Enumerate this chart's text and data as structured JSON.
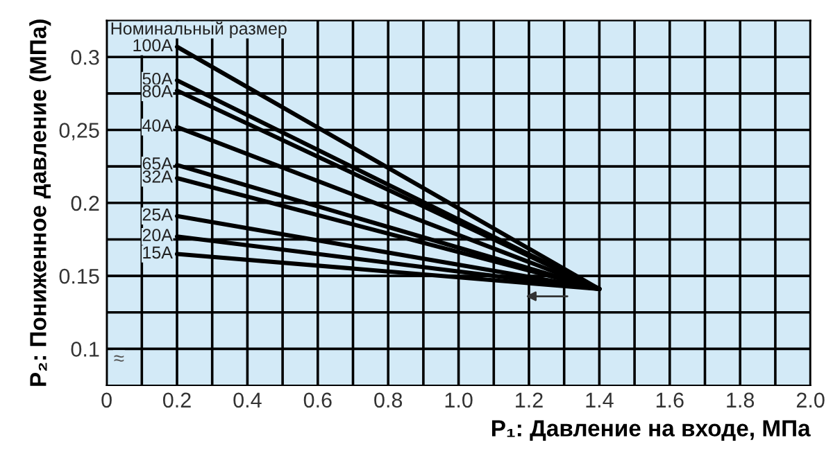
{
  "chart_data": {
    "type": "line",
    "xlabel": "P₁: Давление на входе, МПа",
    "ylabel": "P₂: Пониженное давление (МПа)",
    "annotations": [
      "Номинальный размер",
      "≈"
    ],
    "xlim": [
      0,
      2.0
    ],
    "ylim": [
      0.075,
      0.325
    ],
    "xticks": [
      0,
      {
        "value": 0.1,
        "label": null
      },
      0.2,
      {
        "value": 0.3,
        "label": null
      },
      0.4,
      {
        "value": 0.5,
        "label": null
      },
      0.6,
      {
        "value": 0.7,
        "label": null
      },
      0.8,
      {
        "value": 0.9,
        "label": null
      },
      {
        "value": 1.0,
        "label": "1.0"
      },
      {
        "value": 1.1,
        "label": null
      },
      1.2,
      {
        "value": 1.3,
        "label": null
      },
      1.4,
      {
        "value": 1.5,
        "label": null
      },
      1.6,
      {
        "value": 1.7,
        "label": null
      },
      1.8,
      {
        "value": 1.9,
        "label": null
      },
      {
        "value": 2.0,
        "label": "2.0"
      }
    ],
    "yticks": [
      {
        "value": 0.1,
        "label": "0.1"
      },
      {
        "value": 0.125,
        "label": null
      },
      0.15,
      {
        "value": 0.175,
        "label": null
      },
      {
        "value": 0.2,
        "label": "0.2"
      },
      {
        "value": 0.225,
        "label": null
      },
      {
        "value": 0.25,
        "label": "0,25"
      },
      {
        "value": 0.275,
        "label": null
      },
      {
        "value": 0.3,
        "label": "0.3"
      }
    ],
    "grid": true,
    "marker": "none",
    "line_style": "solid",
    "x": [
      0.2,
      1.4
    ],
    "series": [
      {
        "name": "100A",
        "color": "#000000",
        "values": [
          0.307,
          0.141
        ]
      },
      {
        "name": "50A",
        "color": "#000000",
        "values": [
          0.284,
          0.141
        ]
      },
      {
        "name": "80A",
        "color": "#000000",
        "values": [
          0.277,
          0.141
        ]
      },
      {
        "name": "40A",
        "color": "#000000",
        "values": [
          0.252,
          0.141
        ]
      },
      {
        "name": "65A",
        "color": "#000000",
        "values": [
          0.226,
          0.141
        ]
      },
      {
        "name": "32A",
        "color": "#000000",
        "values": [
          0.217,
          0.141
        ]
      },
      {
        "name": "25A",
        "color": "#000000",
        "values": [
          0.191,
          0.141
        ]
      },
      {
        "name": "20A",
        "color": "#000000",
        "values": [
          0.177,
          0.141
        ]
      },
      {
        "name": "15A",
        "color": "#000000",
        "values": [
          0.165,
          0.141
        ]
      }
    ]
  }
}
